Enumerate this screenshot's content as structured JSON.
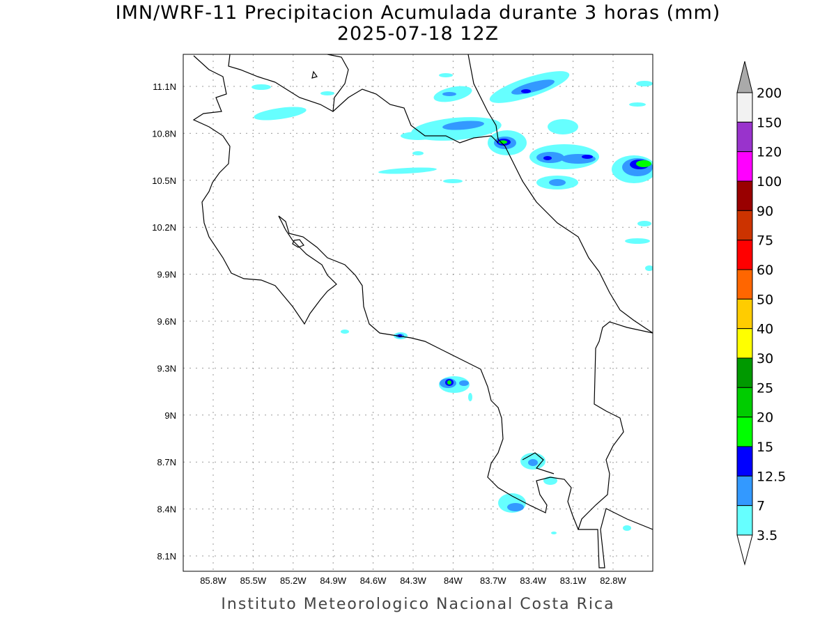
{
  "title": {
    "line1": "IMN/WRF-11 Precipitacion Acumulada durante 3 horas (mm)",
    "line2": "2025-07-18 12Z"
  },
  "footer": "Instituto Meteorologico Nacional Costa Rica",
  "map": {
    "lon_labels": [
      "85.8W",
      "85.5W",
      "85.2W",
      "84.9W",
      "84.6W",
      "84.3W",
      "84W",
      "83.7W",
      "83.4W",
      "83.1W",
      "82.8W"
    ],
    "lat_labels": [
      "11.1N",
      "10.8N",
      "10.5N",
      "10.2N",
      "9.9N",
      "9.6N",
      "9.3N",
      "9N",
      "8.7N",
      "8.4N",
      "8.1N"
    ]
  },
  "colorbar": {
    "labels": [
      "200",
      "150",
      "120",
      "100",
      "90",
      "75",
      "60",
      "50",
      "40",
      "30",
      "25",
      "20",
      "15",
      "12.5",
      "7",
      "3.5"
    ],
    "colors": [
      "#f2f2f2",
      "#9933cc",
      "#ff00ff",
      "#990000",
      "#cc3300",
      "#ff0000",
      "#ff6600",
      "#ffcc00",
      "#ffff00",
      "#009900",
      "#00cc00",
      "#00ff00",
      "#0000ff",
      "#3399ff",
      "#66ffff"
    ],
    "over_color": "#aaaaaa",
    "under_color": "#ffffff"
  },
  "legend_colors": {
    "c35": "#66ffff",
    "c7": "#3399ff",
    "c125": "#0000ff",
    "c15": "#00ff00",
    "c20": "#00cc00"
  }
}
